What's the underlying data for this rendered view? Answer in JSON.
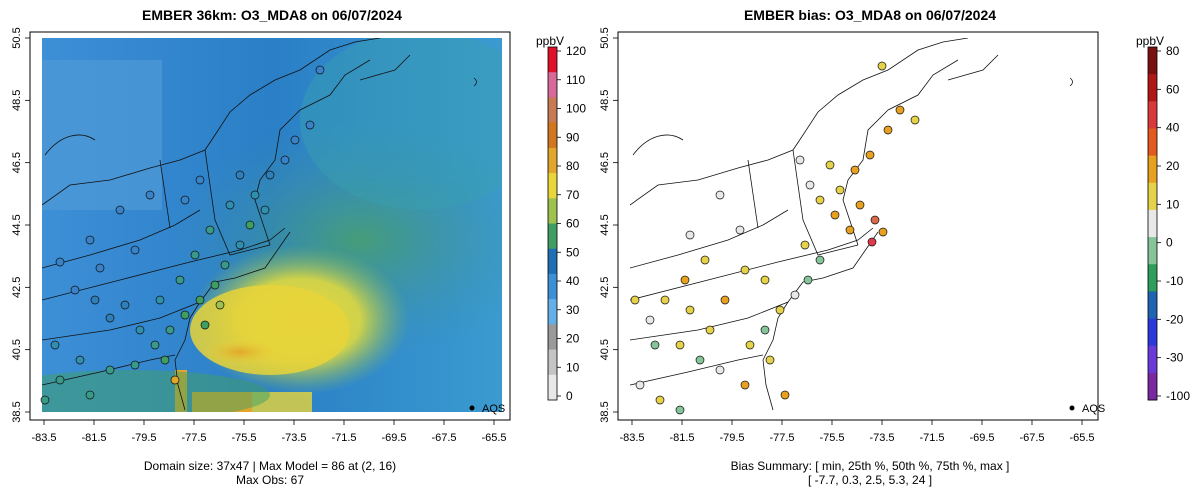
{
  "left_panel": {
    "title": "EMBER 36km: O3_MDA8 on 06/07/2024",
    "colorbar": {
      "unit": "ppbV",
      "labels": [
        "120",
        "110",
        "100",
        "90",
        "80",
        "70",
        "60",
        "50",
        "40",
        "30",
        "20",
        "10",
        "0"
      ],
      "colors": [
        "#e0112a",
        "#d86a9a",
        "#c87a52",
        "#d2761f",
        "#e2a72a",
        "#e9d63a",
        "#9fc24f",
        "#3f9f62",
        "#1f6fb5",
        "#3d8fd6",
        "#62b0e7",
        "#9a9a9a",
        "#c4c4c4",
        "#e8e8e8"
      ]
    },
    "legend_label": "AQS",
    "caption_line1": "Domain size: 37x47 | Max Model = 86 at (2, 16)",
    "caption_line2": "Max Obs: 67"
  },
  "right_panel": {
    "title": "EMBER bias: O3_MDA8 on 06/07/2024",
    "colorbar": {
      "unit": "ppbV",
      "labels": [
        "80",
        "60",
        "40",
        "20",
        "10",
        "0",
        "-10",
        "-20",
        "-30",
        "-100"
      ],
      "colors": [
        "#7a1010",
        "#b01818",
        "#d83a3a",
        "#e25a20",
        "#e8a020",
        "#e6d24a",
        "#e8e8e8",
        "#86c49a",
        "#2f9e5a",
        "#1e64b0",
        "#2a3ad8",
        "#6a3ad8",
        "#7a2aa0"
      ]
    },
    "legend_label": "AQS",
    "caption_line1": "Bias Summary: [ min, 25th %, 50th %, 75th %, max ]",
    "caption_line2": "[ -7.7,   0.3,   2.5,   5.3,   24 ]"
  },
  "x_axis": {
    "ticks": [
      "-83.5",
      "-81.5",
      "-79.5",
      "-77.5",
      "-75.5",
      "-73.5",
      "-71.5",
      "-69.5",
      "-67.5",
      "-65.5"
    ]
  },
  "y_axis": {
    "ticks": [
      "38.5",
      "40.5",
      "42.5",
      "44.5",
      "46.5",
      "48.5",
      "50.5"
    ]
  }
}
